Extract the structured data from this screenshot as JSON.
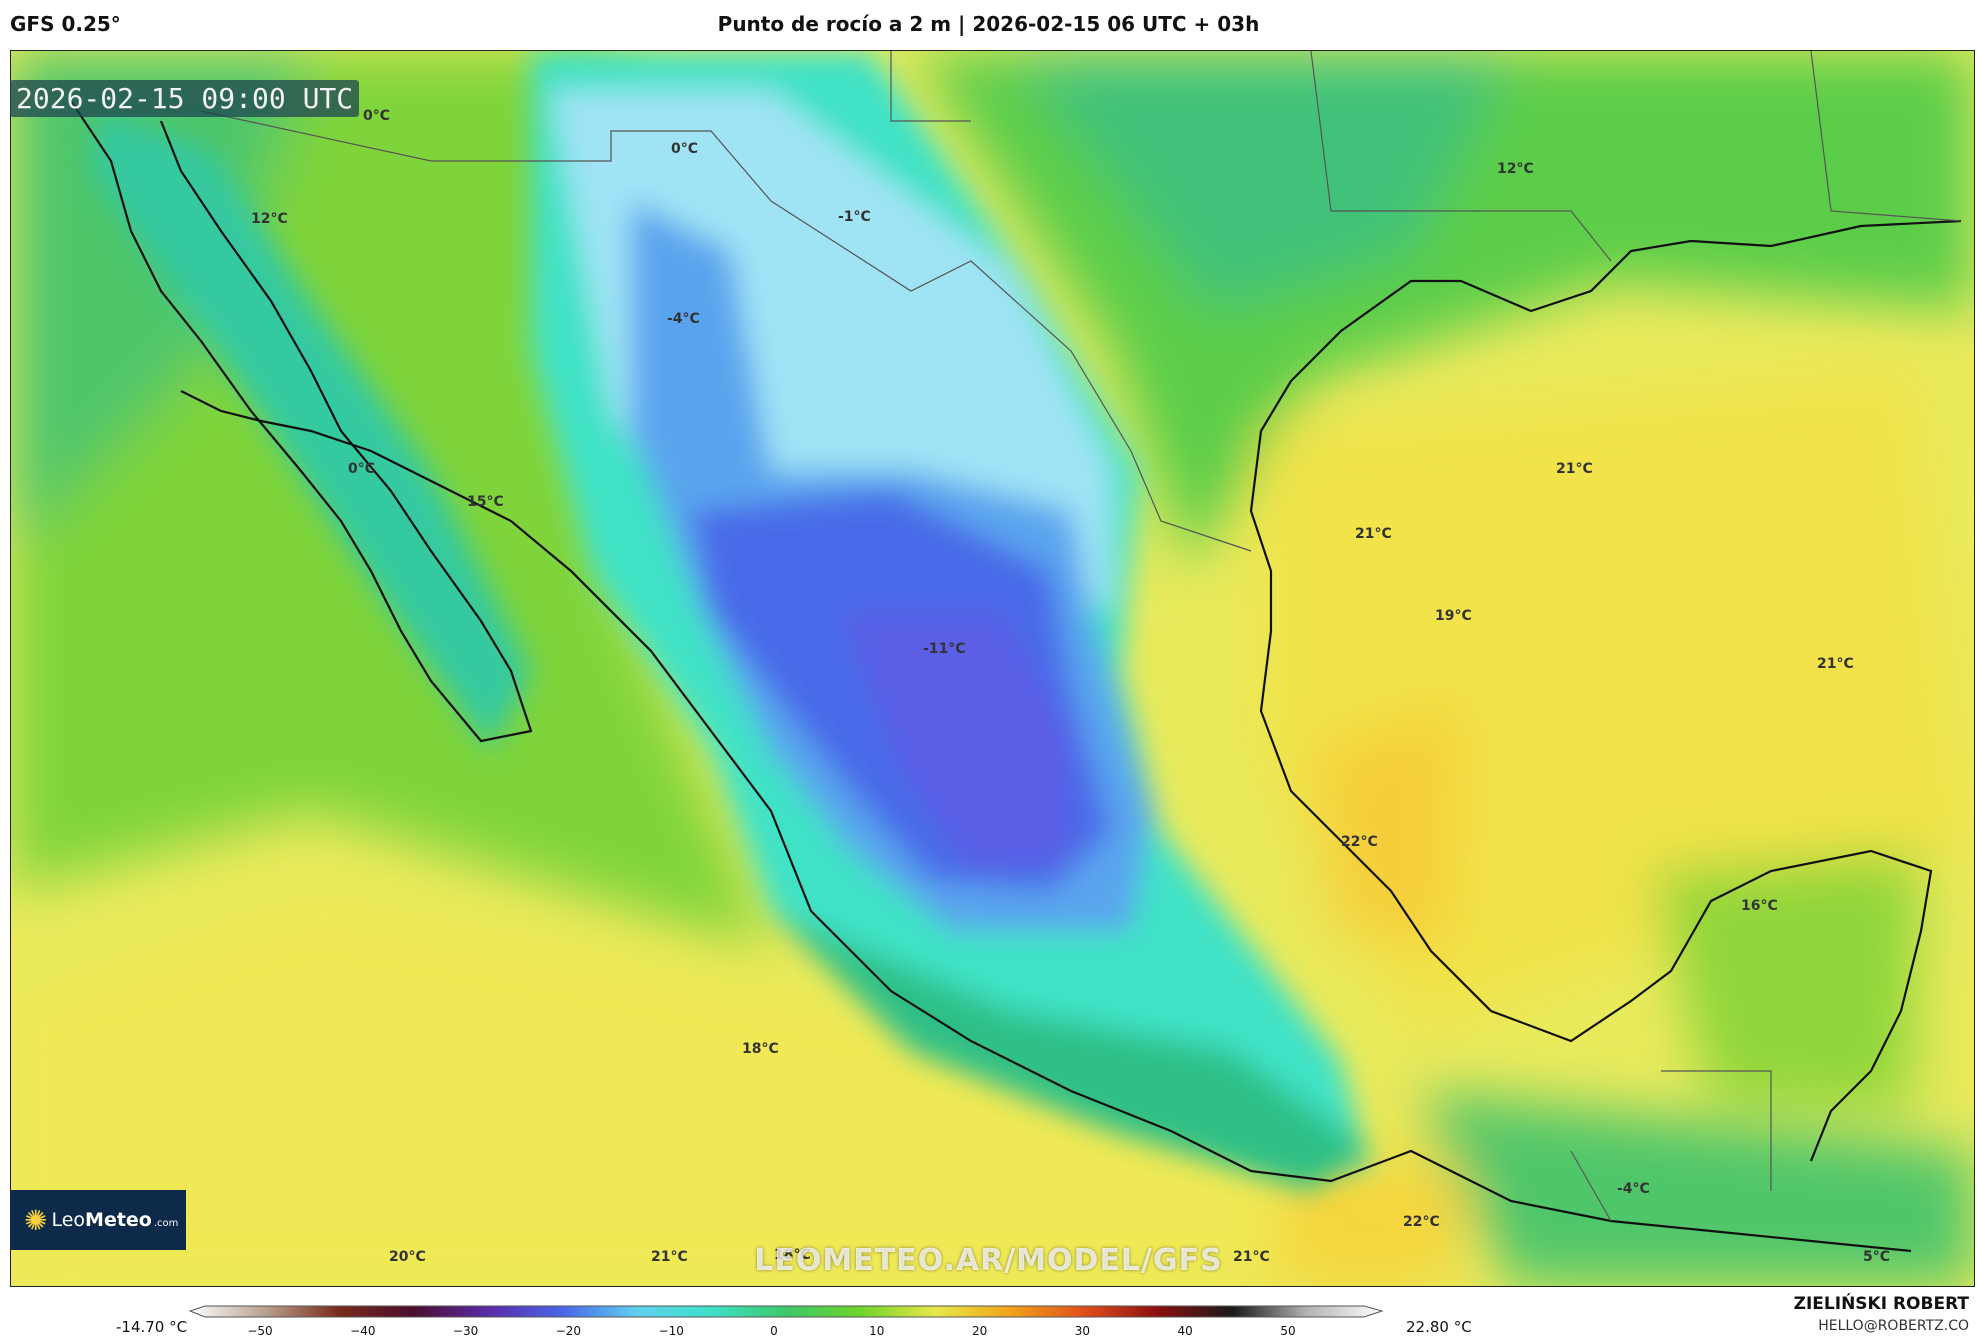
{
  "header": {
    "model": "GFS 0.25°",
    "title": "Punto de rocío a 2 m | 2026-02-15 06 UTC + 03h"
  },
  "map": {
    "valid_time": "2026-02-15 09:00 UTC",
    "watermark": "LEOMETEO.AR/MODEL/GFS",
    "labels": [
      {
        "id": "l1",
        "text": "0°C"
      },
      {
        "id": "l2",
        "text": "0°C"
      },
      {
        "id": "l3",
        "text": "-1°C"
      },
      {
        "id": "l4",
        "text": "12°C"
      },
      {
        "id": "l5",
        "text": "12°C"
      },
      {
        "id": "l6",
        "text": "-4°C"
      },
      {
        "id": "l7",
        "text": "0°C"
      },
      {
        "id": "l8",
        "text": "15°C"
      },
      {
        "id": "l9",
        "text": "21°C"
      },
      {
        "id": "l10",
        "text": "21°C"
      },
      {
        "id": "l11",
        "text": "19°C"
      },
      {
        "id": "l12",
        "text": "21°C"
      },
      {
        "id": "l13",
        "text": "-11°C"
      },
      {
        "id": "l14",
        "text": "22°C"
      },
      {
        "id": "l15",
        "text": "16°C"
      },
      {
        "id": "l16",
        "text": "18°C"
      },
      {
        "id": "l17",
        "text": "22°C"
      },
      {
        "id": "l18",
        "text": "-4°C"
      },
      {
        "id": "l19",
        "text": "20°C"
      },
      {
        "id": "l20",
        "text": "21°C"
      },
      {
        "id": "l21",
        "text": "18°C"
      },
      {
        "id": "l22",
        "text": "21°C"
      },
      {
        "id": "l23",
        "text": "5°C"
      }
    ]
  },
  "logo": {
    "brand_a": "Leo",
    "brand_b": "Meteo",
    "domain": ".com"
  },
  "colorbar": {
    "min_label": "-14.70 °C",
    "max_label": "22.80 °C",
    "ticks": [
      "−50",
      "−40",
      "−30",
      "−20",
      "−10",
      "0",
      "10",
      "20",
      "30",
      "40",
      "50"
    ],
    "colors": [
      "#ffffff",
      "#b9a28f",
      "#7a2a1a",
      "#4a0f2e",
      "#5b2aa8",
      "#4a66e8",
      "#5fd0ef",
      "#3fe0c8",
      "#3cc86a",
      "#6fd42a",
      "#e8e84a",
      "#f0a41a",
      "#e0501a",
      "#8a0f0f",
      "#1a1a1a",
      "#b4b4b4",
      "#ffffff"
    ]
  },
  "credit": {
    "author": "ZIELIŃSKI ROBERT",
    "email": "HELLO@ROBERTZ.CO"
  }
}
